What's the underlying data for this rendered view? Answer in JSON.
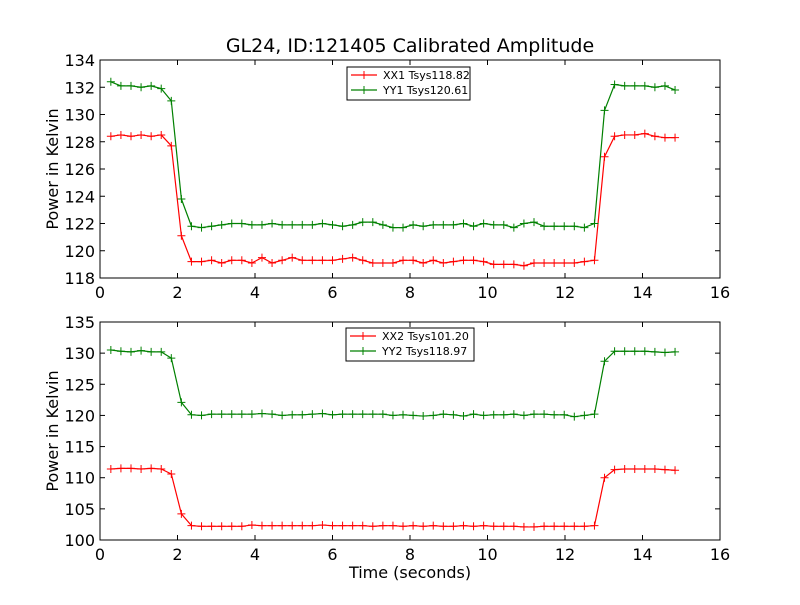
{
  "figure": {
    "title": "GL24, ID:121405 Calibrated Amplitude"
  },
  "chart_data": [
    {
      "type": "line",
      "title": "GL24, ID:121405 Calibrated Amplitude",
      "xlabel": "",
      "ylabel": "Power in Kelvin",
      "xlim": [
        0,
        16
      ],
      "ylim": [
        118,
        134
      ],
      "xticks": [
        "0",
        "2",
        "4",
        "6",
        "8",
        "10",
        "12",
        "14",
        "16"
      ],
      "yticks": [
        "118",
        "120",
        "122",
        "124",
        "126",
        "128",
        "130",
        "132",
        "134"
      ],
      "grid": false,
      "legend_position": "upper-center",
      "x": [
        0.28,
        0.54,
        0.8,
        1.06,
        1.32,
        1.58,
        1.84,
        2.1,
        2.36,
        2.62,
        2.88,
        3.14,
        3.4,
        3.66,
        3.92,
        4.18,
        4.44,
        4.7,
        4.96,
        5.22,
        5.48,
        5.74,
        6.0,
        6.26,
        6.52,
        6.78,
        7.04,
        7.3,
        7.56,
        7.82,
        8.08,
        8.34,
        8.6,
        8.86,
        9.12,
        9.38,
        9.64,
        9.9,
        10.16,
        10.42,
        10.68,
        10.94,
        11.2,
        11.46,
        11.72,
        11.98,
        12.24,
        12.5,
        12.76,
        13.02,
        13.28,
        13.54,
        13.8,
        14.06,
        14.32,
        14.58,
        14.84
      ],
      "series": [
        {
          "name": "XX1 Tsys118.82",
          "color": "#ff0000",
          "values": [
            128.4,
            128.5,
            128.4,
            128.5,
            128.4,
            128.5,
            127.7,
            121.1,
            119.2,
            119.2,
            119.3,
            119.1,
            119.3,
            119.3,
            119.1,
            119.5,
            119.1,
            119.3,
            119.5,
            119.3,
            119.3,
            119.3,
            119.3,
            119.4,
            119.5,
            119.3,
            119.1,
            119.1,
            119.1,
            119.3,
            119.3,
            119.1,
            119.3,
            119.1,
            119.2,
            119.3,
            119.3,
            119.2,
            119.0,
            119.0,
            119.0,
            118.9,
            119.1,
            119.1,
            119.1,
            119.1,
            119.1,
            119.2,
            119.3,
            126.9,
            128.4,
            128.5,
            128.5,
            128.6,
            128.4,
            128.3,
            128.3
          ]
        },
        {
          "name": "YY1 Tsys120.61",
          "color": "#008000",
          "values": [
            132.4,
            132.1,
            132.1,
            132.0,
            132.1,
            131.9,
            131.0,
            123.8,
            121.8,
            121.7,
            121.8,
            121.9,
            122.0,
            122.0,
            121.9,
            121.9,
            122.0,
            121.9,
            121.9,
            121.9,
            121.9,
            122.0,
            121.9,
            121.8,
            121.9,
            122.1,
            122.1,
            121.9,
            121.7,
            121.7,
            121.9,
            121.8,
            121.9,
            121.9,
            121.9,
            122.0,
            121.8,
            122.0,
            121.9,
            121.9,
            121.7,
            122.0,
            122.1,
            121.8,
            121.8,
            121.8,
            121.8,
            121.7,
            122.0,
            130.3,
            132.2,
            132.1,
            132.1,
            132.1,
            132.0,
            132.1,
            131.8
          ]
        }
      ]
    },
    {
      "type": "line",
      "title": "",
      "xlabel": "Time (seconds)",
      "ylabel": "Power in Kelvin",
      "xlim": [
        0,
        16
      ],
      "ylim": [
        100,
        135
      ],
      "xticks": [
        "0",
        "2",
        "4",
        "6",
        "8",
        "10",
        "12",
        "14",
        "16"
      ],
      "yticks": [
        "100",
        "105",
        "110",
        "115",
        "120",
        "125",
        "130",
        "135"
      ],
      "grid": false,
      "legend_position": "upper-center",
      "x": [
        0.28,
        0.54,
        0.8,
        1.06,
        1.32,
        1.58,
        1.84,
        2.1,
        2.36,
        2.62,
        2.88,
        3.14,
        3.4,
        3.66,
        3.92,
        4.18,
        4.44,
        4.7,
        4.96,
        5.22,
        5.48,
        5.74,
        6.0,
        6.26,
        6.52,
        6.78,
        7.04,
        7.3,
        7.56,
        7.82,
        8.08,
        8.34,
        8.6,
        8.86,
        9.12,
        9.38,
        9.64,
        9.9,
        10.16,
        10.42,
        10.68,
        10.94,
        11.2,
        11.46,
        11.72,
        11.98,
        12.24,
        12.5,
        12.76,
        13.02,
        13.28,
        13.54,
        13.8,
        14.06,
        14.32,
        14.58,
        14.84
      ],
      "series": [
        {
          "name": "XX2 Tsys101.20",
          "color": "#ff0000",
          "values": [
            111.4,
            111.5,
            111.5,
            111.4,
            111.5,
            111.4,
            110.6,
            104.2,
            102.3,
            102.2,
            102.2,
            102.2,
            102.2,
            102.2,
            102.4,
            102.3,
            102.3,
            102.3,
            102.3,
            102.3,
            102.3,
            102.4,
            102.3,
            102.3,
            102.3,
            102.3,
            102.2,
            102.3,
            102.3,
            102.2,
            102.3,
            102.2,
            102.3,
            102.2,
            102.2,
            102.3,
            102.2,
            102.3,
            102.2,
            102.2,
            102.2,
            102.1,
            102.1,
            102.2,
            102.2,
            102.2,
            102.2,
            102.2,
            102.3,
            110.0,
            111.3,
            111.4,
            111.4,
            111.4,
            111.4,
            111.3,
            111.2
          ]
        },
        {
          "name": "YY2 Tsys118.97",
          "color": "#008000",
          "values": [
            130.5,
            130.3,
            130.2,
            130.4,
            130.2,
            130.2,
            129.2,
            122.1,
            120.1,
            120.0,
            120.2,
            120.2,
            120.2,
            120.2,
            120.2,
            120.3,
            120.2,
            120.0,
            120.1,
            120.1,
            120.2,
            120.3,
            120.1,
            120.2,
            120.2,
            120.2,
            120.2,
            120.2,
            120.0,
            120.1,
            120.0,
            119.9,
            120.0,
            120.2,
            120.1,
            119.9,
            120.2,
            120.0,
            120.1,
            120.1,
            120.2,
            120.0,
            120.2,
            120.2,
            120.1,
            120.1,
            119.8,
            120.0,
            120.2,
            128.7,
            130.3,
            130.3,
            130.3,
            130.3,
            130.2,
            130.1,
            130.2
          ]
        }
      ]
    }
  ]
}
